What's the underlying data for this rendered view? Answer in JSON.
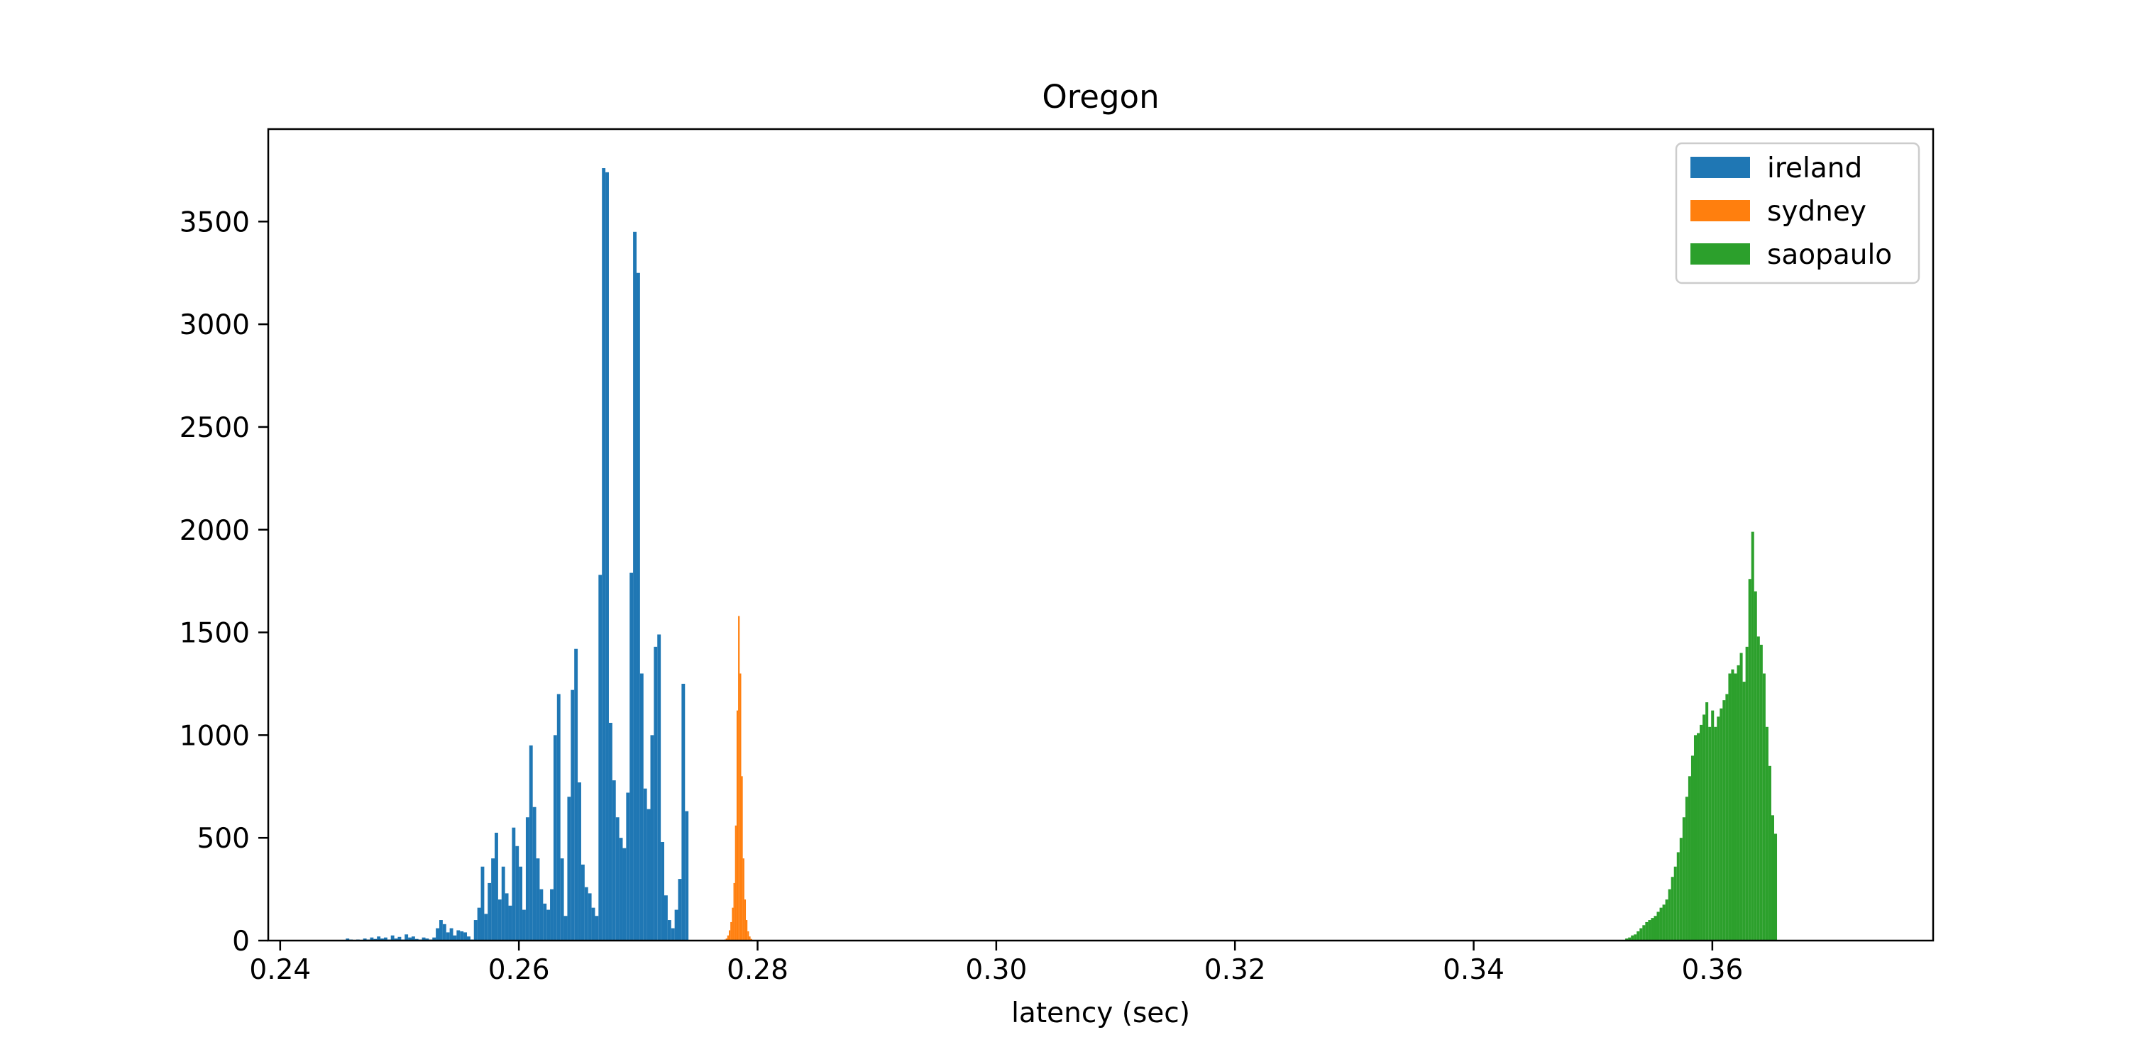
{
  "chart_data": {
    "type": "bar",
    "title": "Oregon",
    "xlabel": "latency (sec)",
    "ylabel": "",
    "xlim": [
      0.239,
      0.3785
    ],
    "ylim": [
      0,
      3950
    ],
    "xticks": [
      0.24,
      0.26,
      0.28,
      0.3,
      0.32,
      0.34,
      0.36
    ],
    "xtick_labels": [
      "0.24",
      "0.26",
      "0.28",
      "0.30",
      "0.32",
      "0.34",
      "0.36"
    ],
    "yticks": [
      0,
      500,
      1000,
      1500,
      2000,
      2500,
      3000,
      3500
    ],
    "ytick_labels": [
      "0",
      "500",
      "1000",
      "1500",
      "2000",
      "2500",
      "3000",
      "3500"
    ],
    "grid": false,
    "legend_position": "top-right",
    "series": [
      {
        "name": "ireland",
        "color": "#1f77b4",
        "bin_start": 0.2455,
        "bin_width": 0.00029,
        "values": [
          10,
          5,
          3,
          5,
          3,
          10,
          5,
          15,
          8,
          20,
          10,
          15,
          5,
          25,
          10,
          18,
          5,
          30,
          15,
          20,
          8,
          5,
          15,
          10,
          5,
          15,
          60,
          100,
          80,
          40,
          60,
          25,
          50,
          45,
          40,
          20,
          5,
          100,
          160,
          360,
          130,
          280,
          400,
          525,
          200,
          360,
          230,
          170,
          550,
          460,
          360,
          150,
          600,
          950,
          650,
          400,
          250,
          180,
          150,
          250,
          1000,
          1200,
          400,
          120,
          700,
          1220,
          1420,
          770,
          370,
          260,
          230,
          160,
          120,
          1780,
          3760,
          3740,
          1060,
          780,
          600,
          500,
          450,
          720,
          1790,
          3450,
          3250,
          1300,
          740,
          640,
          1000,
          1430,
          1490,
          480,
          220,
          100,
          60,
          150,
          300,
          1250,
          630
        ]
      },
      {
        "name": "sydney",
        "color": "#ff7f0e",
        "bin_start": 0.2772,
        "bin_width": 0.00013,
        "values": [
          5,
          10,
          25,
          50,
          90,
          160,
          280,
          560,
          1120,
          1580,
          1300,
          800,
          400,
          200,
          100,
          45,
          20,
          8
        ]
      },
      {
        "name": "saopaulo",
        "color": "#2ca02c",
        "bin_start": 0.3527,
        "bin_width": 0.00024,
        "values": [
          10,
          15,
          25,
          30,
          45,
          60,
          75,
          90,
          100,
          110,
          120,
          140,
          160,
          175,
          200,
          250,
          310,
          360,
          430,
          500,
          600,
          700,
          800,
          900,
          1000,
          1010,
          1050,
          1100,
          1160,
          1040,
          1120,
          1040,
          1090,
          1130,
          1170,
          1200,
          1300,
          1320,
          1300,
          1340,
          1400,
          1260,
          1430,
          1760,
          1990,
          1700,
          1480,
          1440,
          1300,
          1040,
          850,
          610,
          520
        ]
      }
    ]
  }
}
